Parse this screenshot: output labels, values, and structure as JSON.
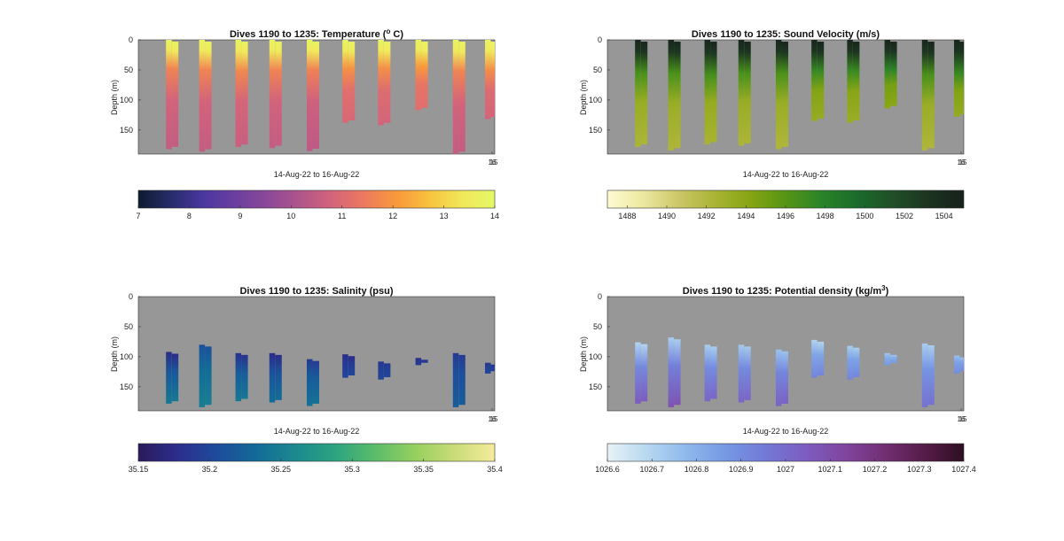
{
  "chart_data": [
    {
      "type": "heatmap",
      "title": "Dives 1190 to 1235: Temperature (",
      "title_sup": "o",
      "title_tail": " C)",
      "ylabel": "Depth (m)",
      "xlabel": "14-Aug-22 to 16-Aug-22",
      "ylim": [
        190,
        0
      ],
      "yticks": [
        0,
        50,
        100,
        150
      ],
      "xtick_labels": [
        "16",
        "15"
      ],
      "background": "#979797",
      "colorbar": {
        "min": 7,
        "max": 14,
        "ticks": [
          7,
          8,
          9,
          10,
          11,
          12,
          13,
          14
        ],
        "colors": [
          "#0d1b2f",
          "#262c6a",
          "#4a37a0",
          "#6b3f9e",
          "#8c4899",
          "#b0558a",
          "#d5647a",
          "#ed7a5e",
          "#f99a3a",
          "#f8c33e",
          "#f1e85a",
          "#e5f866"
        ]
      },
      "profiles": [
        {
          "x": 0.095,
          "max_depth": 182,
          "thermocline": 48,
          "bottom_value": 10.5
        },
        {
          "x": 0.188,
          "max_depth": 186,
          "thermocline": 50,
          "bottom_value": 10.5
        },
        {
          "x": 0.29,
          "max_depth": 178,
          "thermocline": 52,
          "bottom_value": 10.6
        },
        {
          "x": 0.385,
          "max_depth": 180,
          "thermocline": 50,
          "bottom_value": 10.5
        },
        {
          "x": 0.49,
          "max_depth": 185,
          "thermocline": 50,
          "bottom_value": 10.4
        },
        {
          "x": 0.59,
          "max_depth": 138,
          "thermocline": 48,
          "bottom_value": 10.9
        },
        {
          "x": 0.69,
          "max_depth": 142,
          "thermocline": 48,
          "bottom_value": 10.8
        },
        {
          "x": 0.795,
          "max_depth": 117,
          "thermocline": 45,
          "bottom_value": 11.1
        },
        {
          "x": 0.9,
          "max_depth": 190,
          "thermocline": 52,
          "bottom_value": 10.5
        },
        {
          "x": 0.99,
          "max_depth": 132,
          "thermocline": 50,
          "bottom_value": 10.8
        }
      ],
      "top_value": 13.8
    },
    {
      "type": "heatmap",
      "title": "Dives 1190 to 1235: Sound Velocity (m/s)",
      "ylabel": "Depth (m)",
      "xlabel": "14-Aug-22 to 16-Aug-22",
      "ylim": [
        190,
        0
      ],
      "yticks": [
        0,
        50,
        100,
        150
      ],
      "xtick_labels": [
        "16",
        "15"
      ],
      "background": "#979797",
      "colorbar": {
        "min": 1487,
        "max": 1505,
        "ticks": [
          1488,
          1490,
          1492,
          1494,
          1496,
          1498,
          1500,
          1502,
          1504
        ],
        "colors": [
          "#fefbd2",
          "#ece8a0",
          "#ccc768",
          "#aab434",
          "#86a512",
          "#569515",
          "#2b8428",
          "#1b6b2b",
          "#1f4f27",
          "#1c3420",
          "#16211a"
        ]
      },
      "profiles": [
        {
          "x": 0.095,
          "max_depth": 178,
          "thermocline": 55,
          "bottom_value": 1492.3
        },
        {
          "x": 0.188,
          "max_depth": 184,
          "thermocline": 55,
          "bottom_value": 1492.2
        },
        {
          "x": 0.29,
          "max_depth": 174,
          "thermocline": 58,
          "bottom_value": 1492.5
        },
        {
          "x": 0.385,
          "max_depth": 176,
          "thermocline": 55,
          "bottom_value": 1492.3
        },
        {
          "x": 0.49,
          "max_depth": 182,
          "thermocline": 55,
          "bottom_value": 1492.2
        },
        {
          "x": 0.59,
          "max_depth": 135,
          "thermocline": 52,
          "bottom_value": 1493.4
        },
        {
          "x": 0.69,
          "max_depth": 138,
          "thermocline": 52,
          "bottom_value": 1493.2
        },
        {
          "x": 0.795,
          "max_depth": 114,
          "thermocline": 50,
          "bottom_value": 1494.0
        },
        {
          "x": 0.9,
          "max_depth": 184,
          "thermocline": 58,
          "bottom_value": 1492.2
        },
        {
          "x": 0.99,
          "max_depth": 128,
          "thermocline": 55,
          "bottom_value": 1493.5
        }
      ],
      "top_value": 1504.5
    },
    {
      "type": "heatmap",
      "title": "Dives 1190 to 1235: Salinity (psu)",
      "ylabel": "Depth (m)",
      "xlabel": "14-Aug-22 to 16-Aug-22",
      "ylim": [
        190,
        0
      ],
      "yticks": [
        0,
        50,
        100,
        150
      ],
      "xtick_labels": [
        "16",
        "15"
      ],
      "background": "#979797",
      "colorbar": {
        "min": 35.15,
        "max": 35.4,
        "ticks": [
          35.15,
          35.2,
          35.25,
          35.3,
          35.35,
          35.4
        ],
        "colors": [
          "#2b1a5a",
          "#2b2e8c",
          "#1d4c9c",
          "#136b97",
          "#1b8a8e",
          "#2ea47f",
          "#5cbd6a",
          "#96d05f",
          "#cbdc78",
          "#f5ec9c"
        ]
      },
      "profiles": [
        {
          "x": 0.095,
          "top": 92,
          "max_depth": 178,
          "top_value": 35.175,
          "bottom_value": 35.245
        },
        {
          "x": 0.188,
          "top": 80,
          "max_depth": 184,
          "top_value": 35.21,
          "bottom_value": 35.25
        },
        {
          "x": 0.29,
          "top": 94,
          "max_depth": 174,
          "top_value": 35.18,
          "bottom_value": 35.245
        },
        {
          "x": 0.385,
          "top": 94,
          "max_depth": 176,
          "top_value": 35.175,
          "bottom_value": 35.235
        },
        {
          "x": 0.49,
          "top": 104,
          "max_depth": 182,
          "top_value": 35.19,
          "bottom_value": 35.24
        },
        {
          "x": 0.59,
          "top": 96,
          "max_depth": 135,
          "top_value": 35.175,
          "bottom_value": 35.2
        },
        {
          "x": 0.69,
          "top": 108,
          "max_depth": 138,
          "top_value": 35.185,
          "bottom_value": 35.2
        },
        {
          "x": 0.795,
          "top": 102,
          "max_depth": 114,
          "top_value": 35.18,
          "bottom_value": 35.19
        },
        {
          "x": 0.9,
          "top": 94,
          "max_depth": 184,
          "top_value": 35.19,
          "bottom_value": 35.22
        },
        {
          "x": 0.99,
          "top": 110,
          "max_depth": 128,
          "top_value": 35.185,
          "bottom_value": 35.2
        }
      ]
    },
    {
      "type": "heatmap",
      "title": "Dives 1190 to 1235: Potential density (kg/m",
      "title_sup": "3",
      "title_tail": ")",
      "ylabel": "Depth (m)",
      "xlabel": "14-Aug-22 to 16-Aug-22",
      "ylim": [
        190,
        0
      ],
      "yticks": [
        0,
        50,
        100,
        150
      ],
      "xtick_labels": [
        "16",
        "15"
      ],
      "background": "#979797",
      "colorbar": {
        "min": 1026.6,
        "max": 1027.4,
        "ticks": [
          1026.6,
          1026.7,
          1026.8,
          1026.9,
          1027,
          1027.1,
          1027.2,
          1027.3,
          1027.4
        ],
        "colors": [
          "#e8f2f6",
          "#b7d8f0",
          "#8fb8ec",
          "#7598e4",
          "#7379d6",
          "#7c5dc0",
          "#80459d",
          "#722f73",
          "#561c49",
          "#2d0f21"
        ]
      },
      "profiles": [
        {
          "x": 0.095,
          "top": 76,
          "max_depth": 178,
          "top_value": 1026.7,
          "bottom_value": 1027.05
        },
        {
          "x": 0.188,
          "top": 68,
          "max_depth": 184,
          "top_value": 1026.72,
          "bottom_value": 1027.08
        },
        {
          "x": 0.29,
          "top": 80,
          "max_depth": 174,
          "top_value": 1026.72,
          "bottom_value": 1027.02
        },
        {
          "x": 0.385,
          "top": 80,
          "max_depth": 176,
          "top_value": 1026.73,
          "bottom_value": 1027.02
        },
        {
          "x": 0.49,
          "top": 88,
          "max_depth": 182,
          "top_value": 1026.75,
          "bottom_value": 1027.03
        },
        {
          "x": 0.59,
          "top": 72,
          "max_depth": 135,
          "top_value": 1026.7,
          "bottom_value": 1026.92
        },
        {
          "x": 0.69,
          "top": 82,
          "max_depth": 138,
          "top_value": 1026.72,
          "bottom_value": 1026.92
        },
        {
          "x": 0.795,
          "top": 94,
          "max_depth": 114,
          "top_value": 1026.74,
          "bottom_value": 1026.86
        },
        {
          "x": 0.9,
          "top": 78,
          "max_depth": 184,
          "top_value": 1026.72,
          "bottom_value": 1026.98
        },
        {
          "x": 0.99,
          "top": 98,
          "max_depth": 128,
          "top_value": 1026.76,
          "bottom_value": 1026.9
        }
      ]
    }
  ]
}
